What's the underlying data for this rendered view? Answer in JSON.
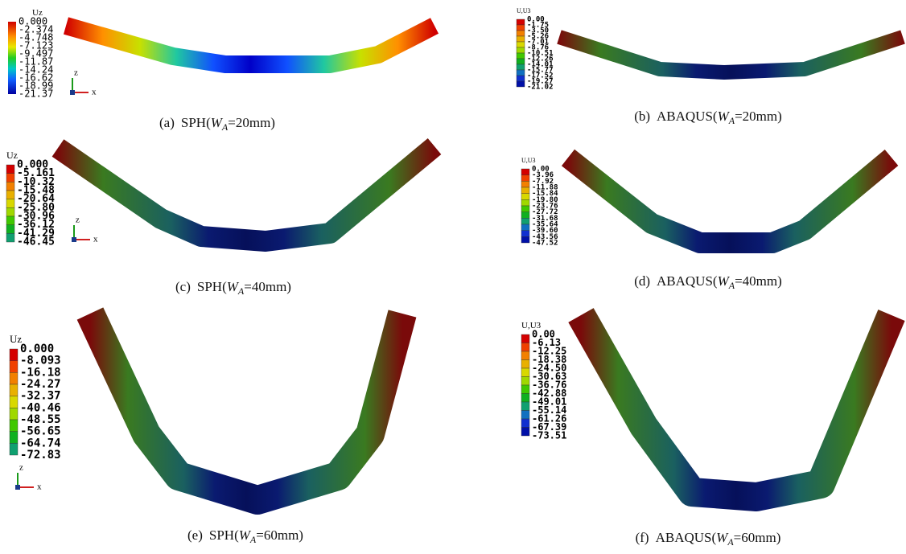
{
  "panels": [
    {
      "legend": {
        "title": "Uz",
        "labels": [
          "0.000",
          "-2.374",
          "-4.748",
          "-7.123",
          "-9.497",
          "-11.87",
          "-14.24",
          "-16.62",
          "-18.99",
          "-21.37"
        ]
      },
      "axes": {
        "z": "z",
        "x": "x"
      },
      "caption": {
        "tag": "(a)",
        "prefix": "SPH(",
        "var": "W",
        "sub": "A",
        "suffix": "=20mm)"
      }
    },
    {
      "legend": {
        "title": "U,U3",
        "labels": [
          "0.00",
          "-1.75",
          "-3.50",
          "-5.26",
          "-7.01",
          "-8.76",
          "-10.51",
          "-12.26",
          "-14.01",
          "-15.77",
          "-17.52",
          "-19.27",
          "-21.02"
        ]
      },
      "caption": {
        "tag": "(b)",
        "prefix": "ABAQUS(",
        "var": "W",
        "sub": "A",
        "suffix": "=20mm)"
      }
    },
    {
      "legend": {
        "title": "Uz",
        "labels": [
          "0.000",
          "-5.161",
          "-10.32",
          "-15.48",
          "-20.64",
          "-25.80",
          "-30.96",
          "-36.12",
          "-41.29",
          "-46.45"
        ]
      },
      "axes": {
        "z": "z",
        "x": "x"
      },
      "caption": {
        "tag": "(c)",
        "prefix": "SPH(",
        "var": "W",
        "sub": "A",
        "suffix": "=40mm)"
      }
    },
    {
      "legend": {
        "title": "U,U3",
        "labels": [
          "0.00",
          "-3.96",
          "-7.92",
          "-11.88",
          "-15.84",
          "-19.80",
          "-23.76",
          "-27.72",
          "-31.68",
          "-35.64",
          "-39.60",
          "-43.56",
          "-47.52"
        ]
      },
      "caption": {
        "tag": "(d)",
        "prefix": "ABAQUS(",
        "var": "W",
        "sub": "A",
        "suffix": "=40mm)"
      }
    },
    {
      "legend": {
        "title": "Uz",
        "labels": [
          "0.000",
          "-8.093",
          "-16.18",
          "-24.27",
          "-32.37",
          "-40.46",
          "-48.55",
          "-56.65",
          "-64.74",
          "-72.83"
        ]
      },
      "axes": {
        "z": "z",
        "x": "x"
      },
      "caption": {
        "tag": "(e)",
        "prefix": "SPH(",
        "var": "W",
        "sub": "A",
        "suffix": "=60mm)"
      }
    },
    {
      "legend": {
        "title": "U,U3",
        "labels": [
          "0.00",
          "-6.13",
          "-12.25",
          "-18.38",
          "-24.50",
          "-30.63",
          "-36.76",
          "-42.88",
          "-49.01",
          "-55.14",
          "-61.26",
          "-67.39",
          "-73.51"
        ]
      },
      "caption": {
        "tag": "(f)",
        "prefix": "ABAQUS(",
        "var": "W",
        "sub": "A",
        "suffix": "=60mm)"
      }
    }
  ]
}
